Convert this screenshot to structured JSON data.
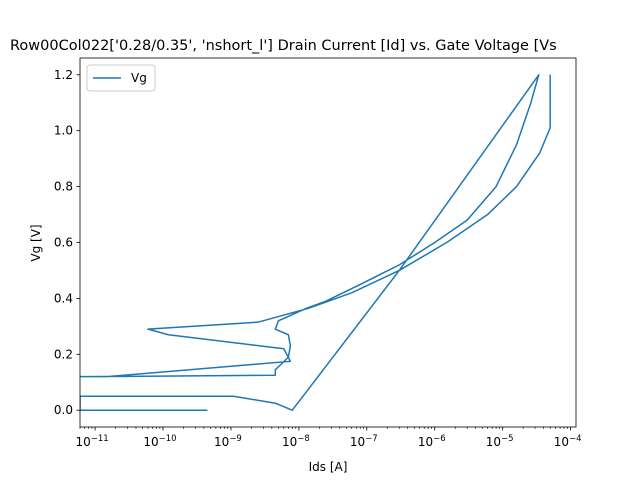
{
  "chart_data": {
    "type": "line",
    "title": "Row00Col022['0.28/0.35', 'nshort_l'] Drain Current [Id] vs. Gate Voltage [Vs",
    "xlabel": "Ids [A]",
    "ylabel": "Vg [V]",
    "xscale": "log",
    "xlim": [
      6e-12,
      0.00012
    ],
    "ylim": [
      -0.06,
      1.26
    ],
    "grid": false,
    "legend_position": "upper-left",
    "x_ticks": [
      {
        "value": 1e-11,
        "base": "10",
        "exp": "−11"
      },
      {
        "value": 1e-10,
        "base": "10",
        "exp": "−10"
      },
      {
        "value": 1e-09,
        "base": "10",
        "exp": "−9"
      },
      {
        "value": 1e-08,
        "base": "10",
        "exp": "−8"
      },
      {
        "value": 1e-07,
        "base": "10",
        "exp": "−7"
      },
      {
        "value": 1e-06,
        "base": "10",
        "exp": "−6"
      },
      {
        "value": 1e-05,
        "base": "10",
        "exp": "−5"
      },
      {
        "value": 0.0001,
        "base": "10",
        "exp": "−4"
      }
    ],
    "y_ticks": [
      {
        "value": 0.0,
        "label": "0.0"
      },
      {
        "value": 0.2,
        "label": "0.2"
      },
      {
        "value": 0.4,
        "label": "0.4"
      },
      {
        "value": 0.6,
        "label": "0.6"
      },
      {
        "value": 0.8,
        "label": "0.8"
      },
      {
        "value": 1.0,
        "label": "1.0"
      },
      {
        "value": 1.2,
        "label": "1.2"
      }
    ],
    "series": [
      {
        "name": "Vg",
        "color": "#1f77b4",
        "points": [
          [
            4.5e-10,
            0.0
          ],
          [
            6e-12,
            0.0
          ],
          [
            6e-12,
            0.05
          ],
          [
            1.1e-09,
            0.05
          ],
          [
            4.5e-09,
            0.025
          ],
          [
            8e-09,
            0.0
          ],
          [
            3e-07,
            0.5
          ],
          [
            3.4e-05,
            1.2
          ],
          [
            2.6e-05,
            1.1
          ],
          [
            1.6e-05,
            0.95
          ],
          [
            8e-06,
            0.8
          ],
          [
            3e-06,
            0.68
          ],
          [
            1e-06,
            0.6
          ],
          [
            3e-07,
            0.52
          ],
          [
            8e-08,
            0.45
          ],
          [
            2.5e-08,
            0.39
          ],
          [
            1.3e-08,
            0.365
          ],
          [
            5e-09,
            0.32
          ],
          [
            4.5e-09,
            0.29
          ],
          [
            7e-09,
            0.27
          ],
          [
            7.5e-09,
            0.23
          ],
          [
            7e-09,
            0.19
          ],
          [
            5.5e-09,
            0.165
          ],
          [
            4.5e-09,
            0.145
          ],
          [
            4.5e-09,
            0.125
          ],
          [
            6e-12,
            0.12
          ],
          [
            1.5e-11,
            0.12
          ],
          [
            7.5e-09,
            0.175
          ],
          [
            6e-09,
            0.22
          ],
          [
            1.2e-10,
            0.27
          ],
          [
            6e-11,
            0.29
          ],
          [
            2.5e-09,
            0.315
          ],
          [
            1.4e-08,
            0.365
          ],
          [
            6e-08,
            0.42
          ],
          [
            3e-07,
            0.5
          ],
          [
            1.5e-06,
            0.6
          ],
          [
            6e-06,
            0.7
          ],
          [
            1.6e-05,
            0.8
          ],
          [
            3.5e-05,
            0.92
          ],
          [
            5e-05,
            1.01
          ],
          [
            5e-05,
            1.2
          ]
        ]
      }
    ]
  }
}
